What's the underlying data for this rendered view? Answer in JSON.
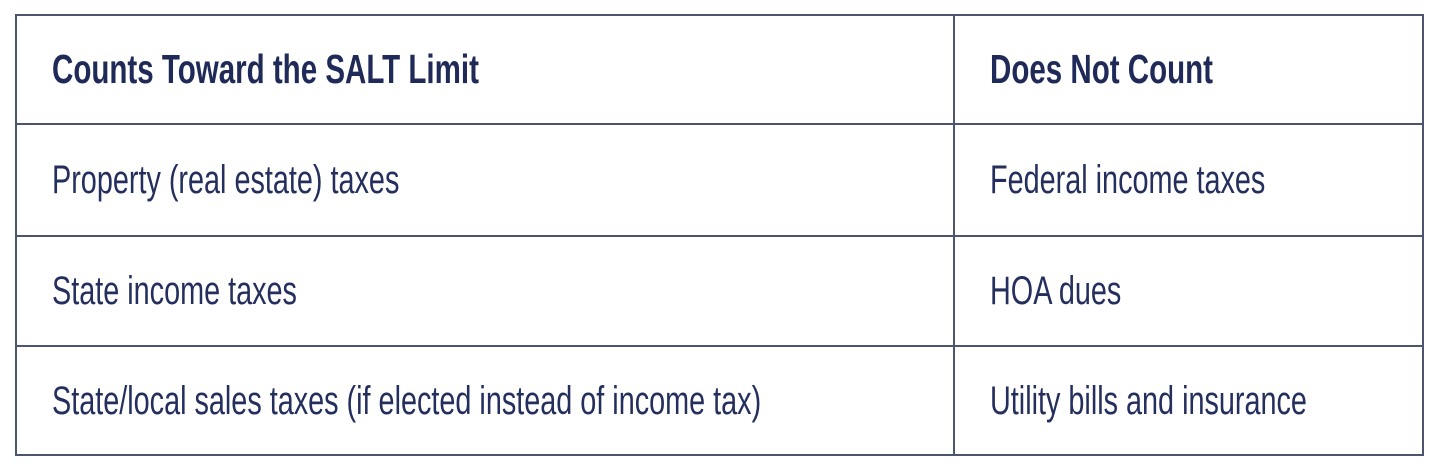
{
  "chart_data": {
    "type": "table",
    "title": "",
    "columns": [
      "Counts Toward the SALT Limit",
      "Does Not Count"
    ],
    "rows": [
      [
        "Property (real estate) taxes",
        "Federal income taxes"
      ],
      [
        "State income taxes",
        "HOA dues"
      ],
      [
        "State/local sales taxes (if elected instead of income tax)",
        "Utility bills and insurance"
      ]
    ],
    "layout": {
      "grid": "2 columns x 4 rows (1 header row + 3 body rows)",
      "header_style": "bold"
    }
  },
  "colors": {
    "text": "#242f5e",
    "header_text": "#1f2a58",
    "border": "#4b556e",
    "background": "#ffffff"
  }
}
